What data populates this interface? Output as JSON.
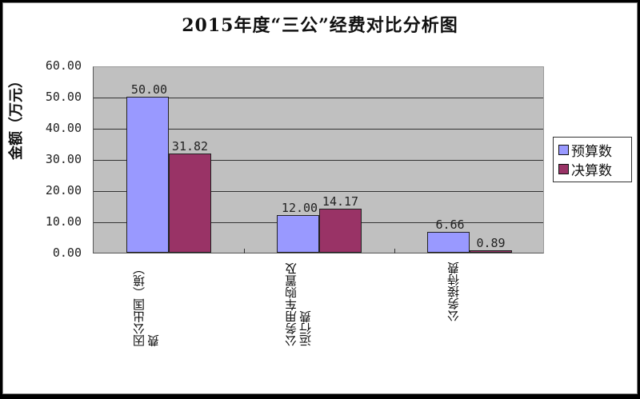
{
  "chart_data": {
    "type": "bar",
    "title": "2015年度“三公”经费对比分析图",
    "xlabel": "",
    "ylabel": "金额（万元）",
    "ylim": [
      0,
      60
    ],
    "yticks": [
      "0.00",
      "10.00",
      "20.00",
      "30.00",
      "40.00",
      "50.00",
      "60.00"
    ],
    "grid": true,
    "legend_position": "right",
    "categories": [
      "因公出国（境）费",
      "公务用车购置及运行费",
      "公务接待费"
    ],
    "series": [
      {
        "name": "预算数",
        "color": "#9999ff",
        "values": [
          50.0,
          12.0,
          6.66
        ],
        "labels": [
          "50.00",
          "12.00",
          "6.66"
        ]
      },
      {
        "name": "决算数",
        "color": "#993366",
        "values": [
          31.82,
          14.17,
          0.89
        ],
        "labels": [
          "31.82",
          "14.17",
          "0.89"
        ]
      }
    ]
  },
  "category_display": [
    [
      "因公出国（境）",
      "费"
    ],
    [
      "公务用车购置及",
      "运行费"
    ],
    [
      "公务接待费"
    ]
  ],
  "colors": {
    "plot_bg": "#c0c0c0",
    "budget": "#9999ff",
    "actual": "#993366"
  }
}
